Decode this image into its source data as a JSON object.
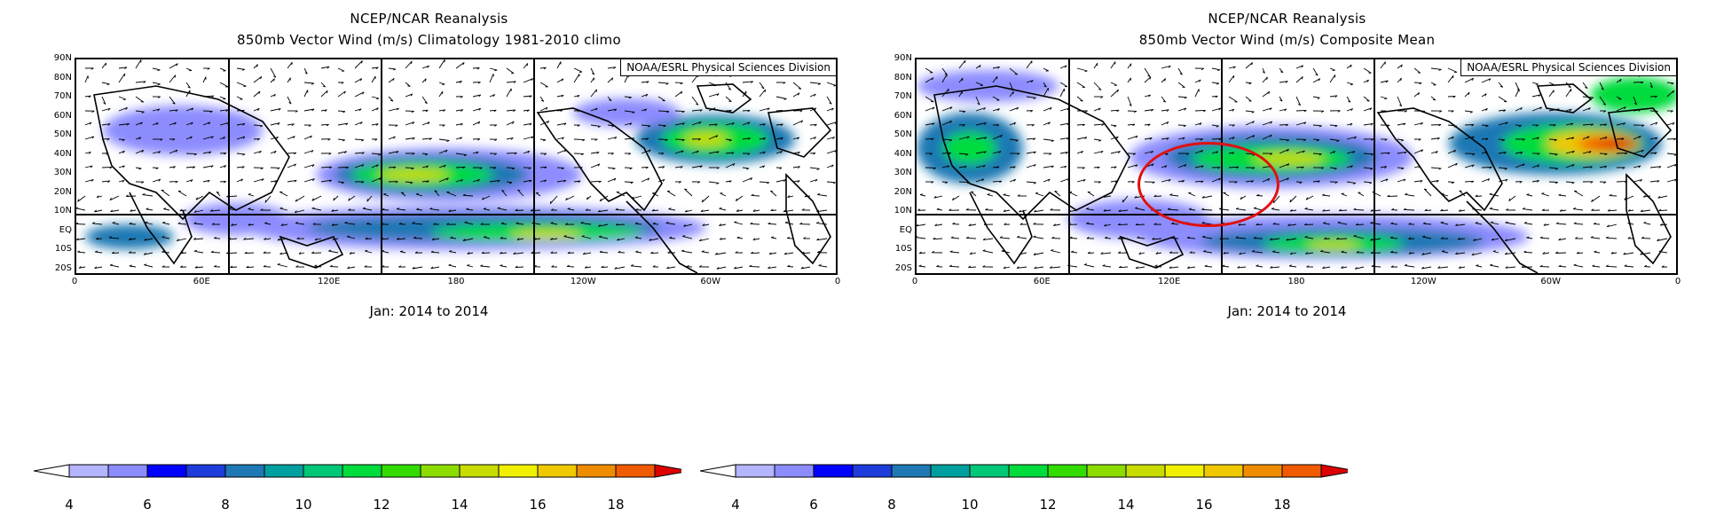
{
  "left": {
    "title_line1": "NCEP/NCAR Reanalysis",
    "title_line2": "850mb Vector Wind (m/s) Climatology 1981-2010 climo",
    "credit": "NOAA/ESRL Physical Sciences Division",
    "date": "Jan: 2014 to 2014"
  },
  "right": {
    "title_line1": "NCEP/NCAR Reanalysis",
    "title_line2": "850mb Vector Wind (m/s) Composite Mean",
    "credit": "NOAA/ESRL Physical Sciences Division",
    "date": "Jan: 2014 to 2014"
  },
  "lat_labels": [
    "90N",
    "80N",
    "70N",
    "60N",
    "50N",
    "40N",
    "30N",
    "20N",
    "10N",
    "EQ",
    "10S",
    "20S"
  ],
  "lon_labels": [
    "0",
    "60E",
    "120E",
    "180",
    "120W",
    "60W",
    "0"
  ],
  "colorbar": {
    "labels": [
      "4",
      "6",
      "8",
      "10",
      "12",
      "14",
      "16",
      "18"
    ],
    "colors": [
      "#ffffff",
      "#b4b4ff",
      "#8c8cff",
      "#0000ff",
      "#1e3cdc",
      "#1e78b4",
      "#00a0a0",
      "#00c878",
      "#00dc3c",
      "#32dc00",
      "#8cdc00",
      "#c8dc00",
      "#f0f000",
      "#f0c800",
      "#f08c00",
      "#f05a00",
      "#dc0000"
    ]
  },
  "highlight": {
    "color": "#e01010",
    "note": ""
  }
}
